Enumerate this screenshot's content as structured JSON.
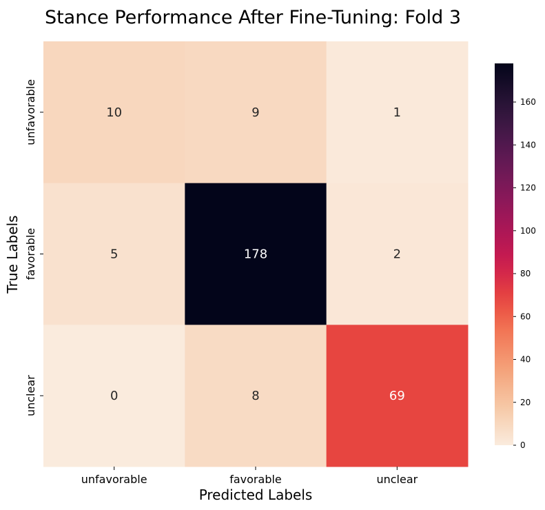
{
  "chart_data": {
    "type": "heatmap",
    "title": "Stance Performance After Fine-Tuning: Fold 3",
    "xlabel": "Predicted Labels",
    "ylabel": "True Labels",
    "x_categories": [
      "unfavorable",
      "favorable",
      "unclear"
    ],
    "y_categories": [
      "unfavorable",
      "favorable",
      "unclear"
    ],
    "values": [
      [
        10,
        9,
        1
      ],
      [
        5,
        178,
        2
      ],
      [
        0,
        8,
        69
      ]
    ],
    "colorbar": {
      "min": 0,
      "max": 178,
      "ticks": [
        0,
        20,
        40,
        60,
        80,
        100,
        120,
        140,
        160
      ],
      "colormap": "rocket_r"
    },
    "grid": false
  }
}
